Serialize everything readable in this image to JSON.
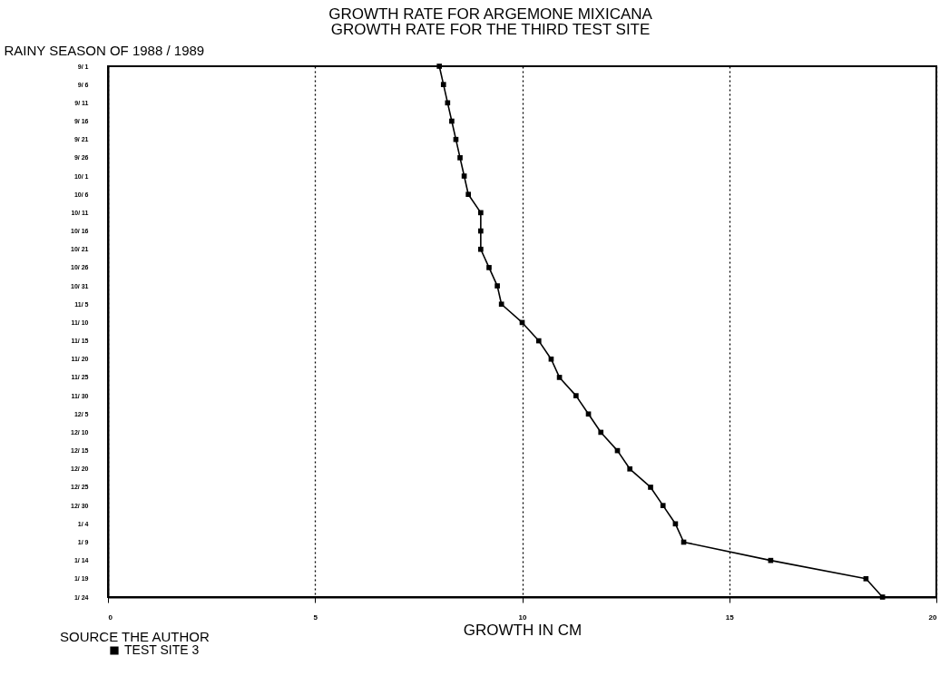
{
  "chart_data": {
    "type": "line",
    "title": "GROWTH RATE FOR ARGEMONE MIXICANA",
    "subtitle": "GROWTH RATE FOR THE THIRD TEST SITE",
    "xlabel": "GROWTH IN CM",
    "ylabel": "RAINY SEASON OF 1988 / 1989",
    "orientation": "horizontal",
    "categories": [
      "9/ 1",
      "9/ 6",
      "9/ 11",
      "9/ 16",
      "9/ 21",
      "9/ 26",
      "10/ 1",
      "10/ 6",
      "10/ 11",
      "10/ 16",
      "10/ 21",
      "10/ 26",
      "10/ 31",
      "11/ 5",
      "11/ 10",
      "11/ 15",
      "11/ 20",
      "11/ 25",
      "11/ 30",
      "12/ 5",
      "12/ 10",
      "12/ 15",
      "12/ 20",
      "12/ 25",
      "12/ 30",
      "1/ 4",
      "1/ 9",
      "1/ 14",
      "1/ 19",
      "1/ 24"
    ],
    "series": [
      {
        "name": "TEST SITE 3",
        "color": "#000000",
        "values": [
          8.0,
          8.1,
          8.2,
          8.3,
          8.4,
          8.5,
          8.6,
          8.7,
          9.0,
          9.0,
          9.0,
          9.2,
          9.4,
          9.5,
          10.0,
          10.4,
          10.7,
          10.9,
          11.3,
          11.6,
          11.9,
          12.3,
          12.6,
          13.1,
          13.4,
          13.7,
          13.9,
          16.0,
          18.3,
          18.7
        ]
      }
    ],
    "xlim": [
      0,
      20
    ],
    "xticks": [
      0,
      5,
      10,
      15,
      20
    ],
    "grid": "x",
    "legend": "bottom",
    "marker": "square",
    "annotations": [
      "SOURCE THE AUTHOR"
    ]
  }
}
